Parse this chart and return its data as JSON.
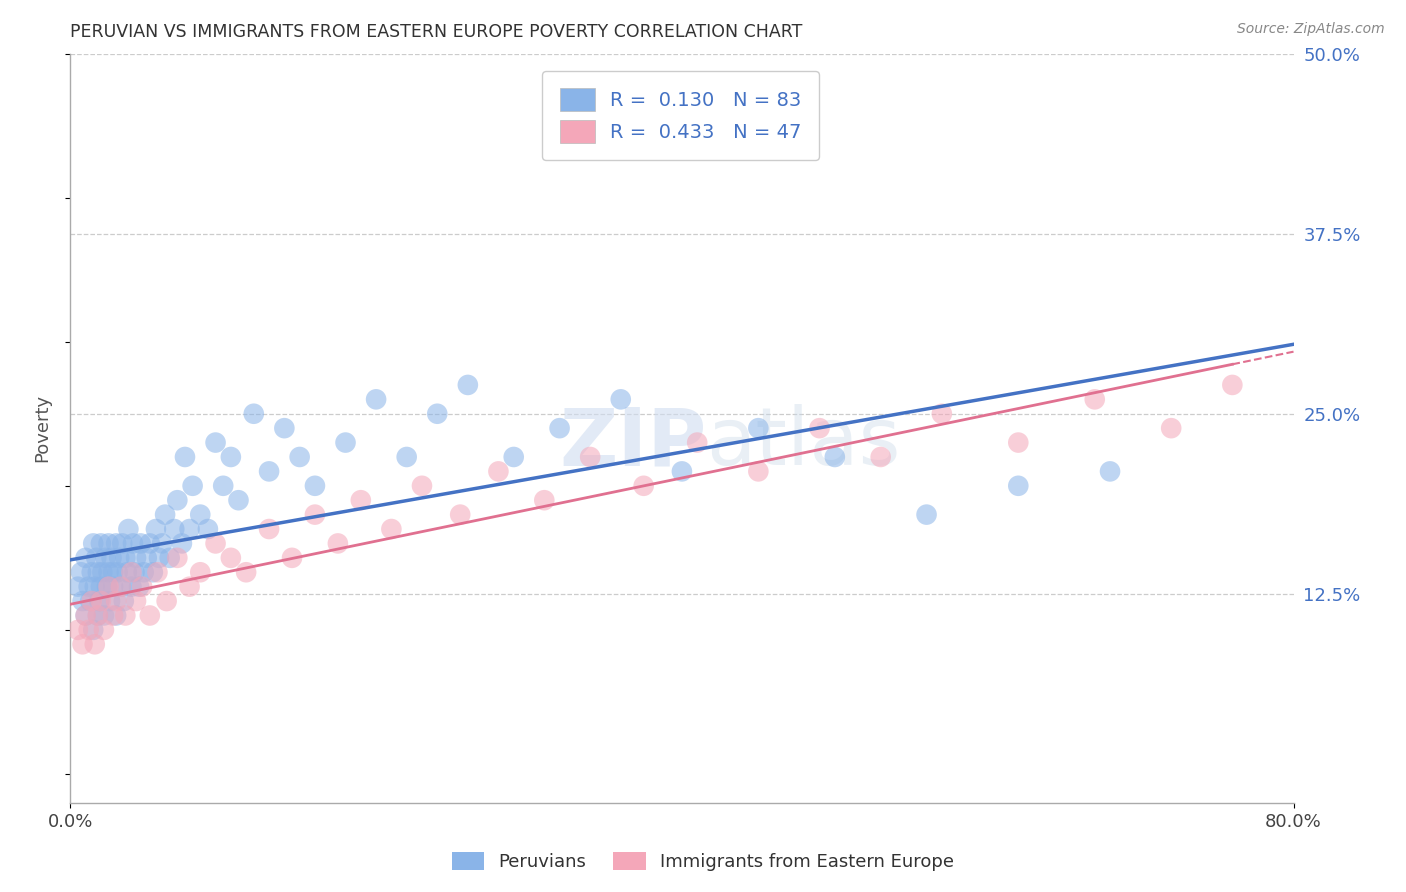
{
  "title": "PERUVIAN VS IMMIGRANTS FROM EASTERN EUROPE POVERTY CORRELATION CHART",
  "source": "Source: ZipAtlas.com",
  "ylabel": "Poverty",
  "xlim": [
    0.0,
    0.8
  ],
  "ylim": [
    -0.02,
    0.5
  ],
  "ytick_positions": [
    0.0,
    0.125,
    0.25,
    0.375,
    0.5
  ],
  "ytick_labels_right": [
    "",
    "12.5%",
    "25.0%",
    "37.5%",
    "50.0%"
  ],
  "R_blue": 0.13,
  "N_blue": 83,
  "R_pink": 0.433,
  "N_pink": 47,
  "color_blue": "#8ab4e8",
  "color_pink": "#f4a7b9",
  "trend_blue": "#4472c4",
  "trend_pink": "#e07090",
  "background_color": "#ffffff",
  "legend_label_blue": "Peruvians",
  "legend_label_pink": "Immigrants from Eastern Europe",
  "blue_x": [
    0.005,
    0.007,
    0.008,
    0.01,
    0.01,
    0.012,
    0.013,
    0.014,
    0.015,
    0.015,
    0.016,
    0.017,
    0.018,
    0.018,
    0.019,
    0.02,
    0.02,
    0.021,
    0.022,
    0.023,
    0.024,
    0.025,
    0.025,
    0.026,
    0.027,
    0.028,
    0.028,
    0.03,
    0.03,
    0.031,
    0.032,
    0.033,
    0.034,
    0.035,
    0.036,
    0.037,
    0.038,
    0.04,
    0.041,
    0.042,
    0.043,
    0.045,
    0.046,
    0.048,
    0.05,
    0.052,
    0.054,
    0.056,
    0.058,
    0.06,
    0.062,
    0.065,
    0.068,
    0.07,
    0.073,
    0.075,
    0.078,
    0.08,
    0.085,
    0.09,
    0.095,
    0.1,
    0.105,
    0.11,
    0.12,
    0.13,
    0.14,
    0.15,
    0.16,
    0.18,
    0.2,
    0.22,
    0.24,
    0.26,
    0.29,
    0.32,
    0.36,
    0.4,
    0.45,
    0.5,
    0.56,
    0.62,
    0.68
  ],
  "blue_y": [
    0.13,
    0.14,
    0.12,
    0.11,
    0.15,
    0.13,
    0.12,
    0.14,
    0.1,
    0.16,
    0.13,
    0.15,
    0.11,
    0.14,
    0.12,
    0.16,
    0.13,
    0.14,
    0.11,
    0.15,
    0.13,
    0.14,
    0.16,
    0.12,
    0.15,
    0.14,
    0.13,
    0.16,
    0.11,
    0.14,
    0.15,
    0.13,
    0.16,
    0.12,
    0.15,
    0.14,
    0.17,
    0.13,
    0.16,
    0.14,
    0.15,
    0.13,
    0.16,
    0.14,
    0.15,
    0.16,
    0.14,
    0.17,
    0.15,
    0.16,
    0.18,
    0.15,
    0.17,
    0.19,
    0.16,
    0.22,
    0.17,
    0.2,
    0.18,
    0.17,
    0.23,
    0.2,
    0.22,
    0.19,
    0.25,
    0.21,
    0.24,
    0.22,
    0.2,
    0.23,
    0.26,
    0.22,
    0.25,
    0.27,
    0.22,
    0.24,
    0.26,
    0.21,
    0.24,
    0.22,
    0.18,
    0.2,
    0.21
  ],
  "pink_x": [
    0.005,
    0.008,
    0.01,
    0.012,
    0.014,
    0.016,
    0.018,
    0.02,
    0.022,
    0.025,
    0.028,
    0.03,
    0.033,
    0.036,
    0.04,
    0.043,
    0.047,
    0.052,
    0.057,
    0.063,
    0.07,
    0.078,
    0.085,
    0.095,
    0.105,
    0.115,
    0.13,
    0.145,
    0.16,
    0.175,
    0.19,
    0.21,
    0.23,
    0.255,
    0.28,
    0.31,
    0.34,
    0.375,
    0.41,
    0.45,
    0.49,
    0.53,
    0.57,
    0.62,
    0.67,
    0.72,
    0.76
  ],
  "pink_y": [
    0.1,
    0.09,
    0.11,
    0.1,
    0.12,
    0.09,
    0.11,
    0.12,
    0.1,
    0.13,
    0.11,
    0.12,
    0.13,
    0.11,
    0.14,
    0.12,
    0.13,
    0.11,
    0.14,
    0.12,
    0.15,
    0.13,
    0.14,
    0.16,
    0.15,
    0.14,
    0.17,
    0.15,
    0.18,
    0.16,
    0.19,
    0.17,
    0.2,
    0.18,
    0.21,
    0.19,
    0.22,
    0.2,
    0.23,
    0.21,
    0.24,
    0.22,
    0.25,
    0.23,
    0.26,
    0.24,
    0.27
  ]
}
